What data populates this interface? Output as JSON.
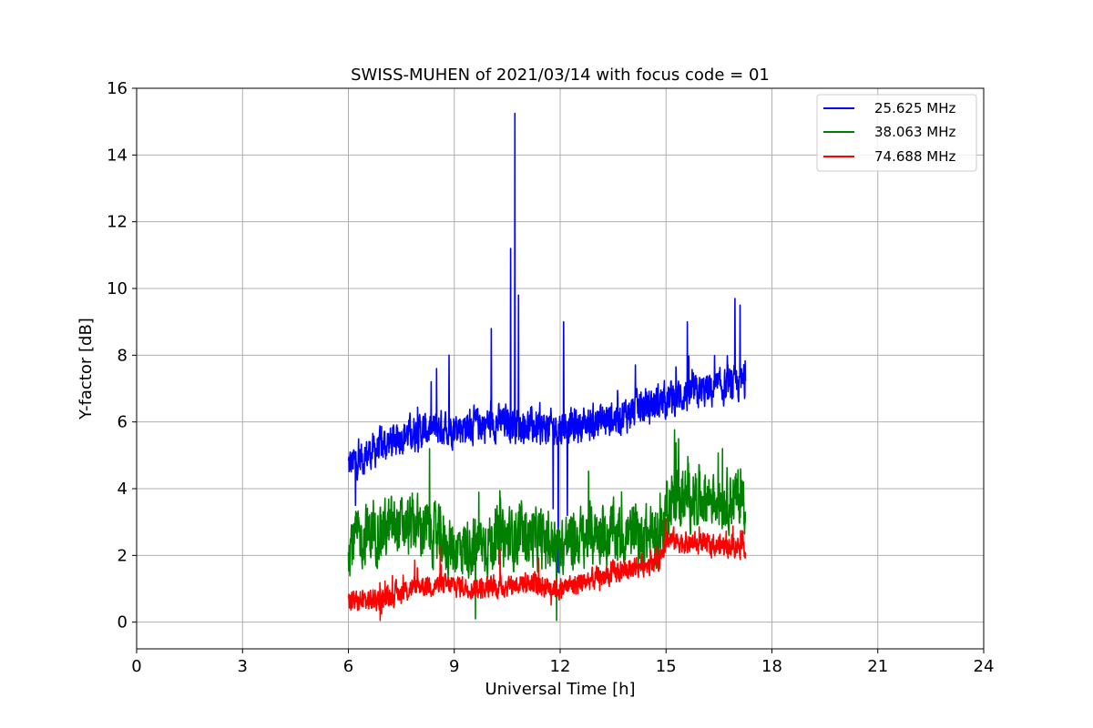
{
  "chart_data": {
    "type": "line",
    "title": "SWISS-MUHEN of 2021/03/14 with focus code = 01",
    "xlabel": "Universal Time [h]",
    "ylabel": "Y-factor [dB]",
    "xlim": [
      0,
      24
    ],
    "ylim": [
      -0.8,
      16
    ],
    "xticks": [
      0,
      3,
      6,
      9,
      12,
      15,
      18,
      21,
      24
    ],
    "yticks": [
      0,
      2,
      4,
      6,
      8,
      10,
      12,
      14,
      16
    ],
    "grid": true,
    "legend_position": "top-right",
    "series": [
      {
        "name": "25.625 MHz",
        "color": "#0000ff",
        "x_range": [
          6.0,
          17.25
        ],
        "base": [
          [
            6.0,
            4.7
          ],
          [
            6.5,
            5.0
          ],
          [
            7.5,
            5.6
          ],
          [
            8.5,
            5.8
          ],
          [
            9.5,
            5.9
          ],
          [
            10.5,
            6.0
          ],
          [
            11.5,
            5.8
          ],
          [
            12.5,
            5.9
          ],
          [
            13.5,
            6.1
          ],
          [
            14.5,
            6.5
          ],
          [
            15.5,
            6.8
          ],
          [
            16.5,
            7.0
          ],
          [
            17.25,
            7.2
          ]
        ],
        "noise": 0.45,
        "peaks": [
          [
            6.2,
            3.5
          ],
          [
            8.5,
            7.6
          ],
          [
            8.85,
            8.0
          ],
          [
            10.05,
            8.8
          ],
          [
            10.6,
            11.2
          ],
          [
            10.72,
            15.25
          ],
          [
            10.82,
            9.8
          ],
          [
            11.8,
            3.4
          ],
          [
            11.95,
            1.5
          ],
          [
            12.1,
            9.0
          ],
          [
            12.2,
            3.2
          ],
          [
            16.95,
            9.7
          ],
          [
            17.1,
            9.5
          ],
          [
            15.6,
            9.0
          ]
        ]
      },
      {
        "name": "38.063 MHz",
        "color": "#008000",
        "x_range": [
          6.0,
          17.25
        ],
        "base": [
          [
            6.0,
            2.4
          ],
          [
            7.0,
            2.8
          ],
          [
            8.0,
            2.9
          ],
          [
            9.0,
            2.2
          ],
          [
            10.0,
            2.4
          ],
          [
            11.0,
            2.6
          ],
          [
            12.0,
            2.3
          ],
          [
            13.0,
            2.7
          ],
          [
            14.0,
            2.6
          ],
          [
            14.9,
            2.6
          ],
          [
            15.0,
            3.6
          ],
          [
            16.0,
            3.8
          ],
          [
            17.25,
            3.7
          ]
        ],
        "noise": 0.75,
        "peaks": [
          [
            8.3,
            5.2
          ],
          [
            9.6,
            0.1
          ],
          [
            15.35,
            5.5
          ],
          [
            16.6,
            5.2
          ],
          [
            11.9,
            0.05
          ]
        ]
      },
      {
        "name": "74.688 MHz",
        "color": "#ff0000",
        "x_range": [
          6.0,
          17.25
        ],
        "base": [
          [
            6.0,
            0.6
          ],
          [
            7.0,
            0.7
          ],
          [
            8.0,
            1.1
          ],
          [
            9.0,
            1.1
          ],
          [
            10.0,
            1.0
          ],
          [
            11.0,
            1.2
          ],
          [
            12.0,
            1.0
          ],
          [
            13.0,
            1.3
          ],
          [
            14.0,
            1.6
          ],
          [
            14.8,
            1.9
          ],
          [
            15.0,
            2.5
          ],
          [
            16.0,
            2.3
          ],
          [
            17.25,
            2.3
          ]
        ],
        "noise": 0.28,
        "peaks": [
          [
            8.6,
            2.3
          ],
          [
            10.3,
            2.2
          ],
          [
            15.0,
            3.1
          ],
          [
            6.9,
            0.05
          ]
        ]
      }
    ]
  }
}
